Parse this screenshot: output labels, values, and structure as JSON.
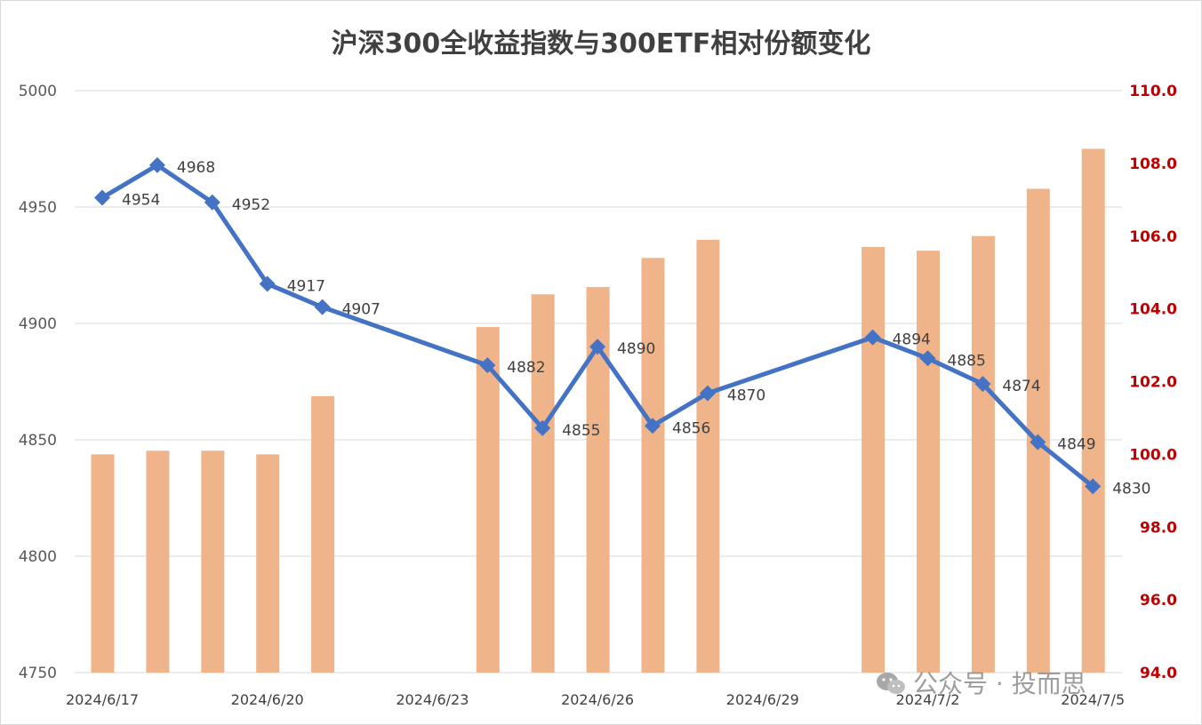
{
  "title": "沪深300全收益指数与300ETF相对份额变化",
  "watermark": "公众号 · 投而思",
  "colors": {
    "line": "#4472c4",
    "bar": "#f0b48a",
    "right_axis": "#c00000",
    "grid": "#d9d9d9"
  },
  "chart_data": {
    "type": "bar+line",
    "x_tick_labels": [
      "2024/6/17",
      "2024/6/20",
      "2024/6/23",
      "2024/6/26",
      "2024/6/29",
      "2024/7/2",
      "2024/7/5"
    ],
    "dates": [
      "2024/6/17",
      "2024/6/18",
      "2024/6/19",
      "2024/6/20",
      "2024/6/21",
      "2024/6/22",
      "2024/6/23",
      "2024/6/24",
      "2024/6/25",
      "2024/6/26",
      "2024/6/27",
      "2024/6/28",
      "2024/6/29",
      "2024/6/30",
      "2024/7/1",
      "2024/7/2",
      "2024/7/3",
      "2024/7/4",
      "2024/7/5"
    ],
    "line_series": {
      "axis": "left",
      "values": [
        4954,
        4968,
        4952,
        4917,
        4907,
        null,
        null,
        4882,
        4855,
        4890,
        4856,
        4870,
        null,
        null,
        4894,
        4885,
        4874,
        4849,
        4830
      ],
      "labels": [
        "4954",
        "4968",
        "4952",
        "4917",
        "4907",
        "",
        "",
        "4882",
        "4855",
        "4890",
        "4856",
        "4870",
        "",
        "",
        "4894",
        "4885",
        "4874",
        "4849",
        "4830"
      ]
    },
    "bar_series": {
      "axis": "right",
      "values": [
        100.0,
        100.1,
        100.1,
        100.0,
        101.6,
        null,
        null,
        103.5,
        104.4,
        104.6,
        105.4,
        105.9,
        null,
        null,
        105.7,
        105.6,
        106.0,
        107.3,
        108.4
      ]
    },
    "y_left": {
      "min": 4750,
      "max": 5000,
      "ticks": [
        "5000",
        "4950",
        "4900",
        "4850",
        "4800",
        "4750"
      ]
    },
    "y_right": {
      "min": 94.0,
      "max": 110.0,
      "ticks": [
        "110.0",
        "108.0",
        "106.0",
        "104.0",
        "102.0",
        "100.0",
        "98.0",
        "96.0",
        "94.0"
      ]
    },
    "grid": true
  }
}
